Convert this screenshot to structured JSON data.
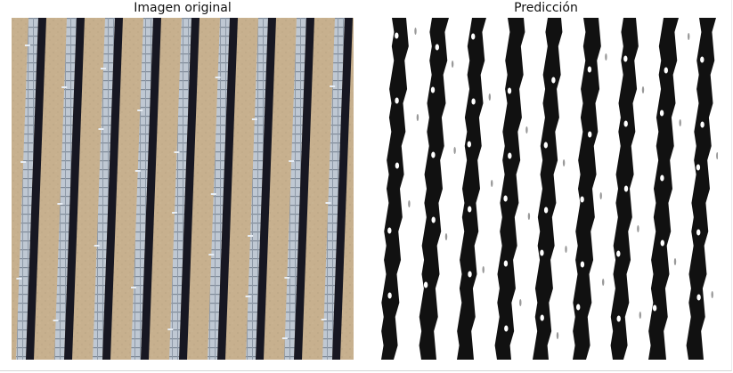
{
  "figure": {
    "left_title": "Imagen original",
    "right_title": "Predicción"
  },
  "colors": {
    "sand": "#c7b08e",
    "sand_dark": "#a99677",
    "panel_cell": "#bcc6d1",
    "panel_frame": "#7f8a98",
    "shadow": "#171722",
    "mask_white": "#ffffff",
    "mask_black": "#111111"
  }
}
